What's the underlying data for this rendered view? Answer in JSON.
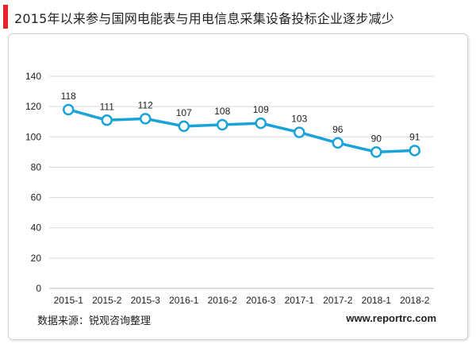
{
  "title": "2015年以来参与国网电能表与用电信息采集设备投标企业逐步减少",
  "footer": {
    "source": "数据来源：锐观咨询整理",
    "website": "www.reportrc.com"
  },
  "colors": {
    "accent": "#e3242b",
    "line": "#1aa3d9",
    "grid": "#d9d9d9"
  },
  "chart_data": {
    "type": "line",
    "categories": [
      "2015-1",
      "2015-2",
      "2015-3",
      "2016-1",
      "2016-2",
      "2016-3",
      "2017-1",
      "2017-2",
      "2018-1",
      "2018-2"
    ],
    "series": [
      {
        "values": [
          118,
          111,
          112,
          107,
          108,
          109,
          103,
          96,
          90,
          91
        ]
      }
    ],
    "ylim": [
      0,
      140
    ],
    "yticks": [
      0,
      20,
      40,
      60,
      80,
      100,
      120,
      140
    ],
    "grid": true,
    "data_labels": true,
    "legend": "none"
  }
}
